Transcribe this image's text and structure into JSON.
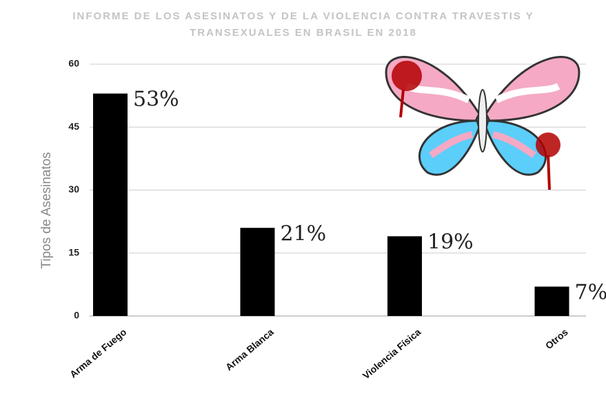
{
  "chart_data": {
    "type": "bar",
    "title": [
      "INFORME DE LOS ASESINATOS Y DE LA VIOLENCIA CONTRA TRAVESTIS Y",
      "TRANSEXUALES EN BRASIL EN 2018"
    ],
    "y_label": "Tipos de Asesinatos",
    "categories": [
      "Arma de Fuego",
      "Arma Blanca",
      "Violencia Física",
      "Otros"
    ],
    "values": [
      53,
      21,
      19,
      7
    ],
    "value_labels": [
      "53%",
      "21%",
      "19%",
      "7%"
    ],
    "color": "#000000",
    "ylim": [
      0,
      60
    ],
    "yticks": [
      0,
      15,
      30,
      45,
      60
    ],
    "grid": true
  }
}
